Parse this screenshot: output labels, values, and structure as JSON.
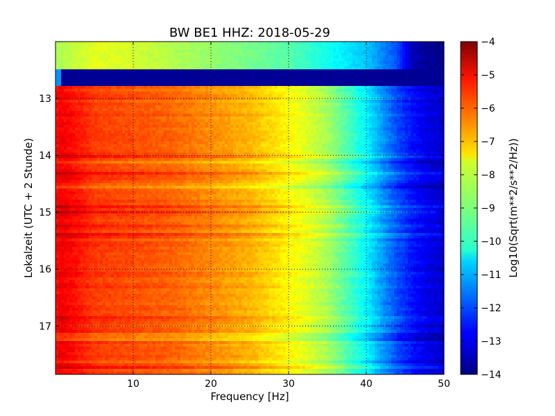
{
  "chart_data": {
    "type": "heatmap",
    "title": "BW BE1 HHZ: 2018-05-29",
    "xlabel": "Frequency [Hz]",
    "ylabel": "Lokalzeit (UTC + 2 Stunde)",
    "colorbar_label": "Log10(Sqrt(m**2/s**2/Hz))",
    "xlim": [
      0,
      50
    ],
    "ylim": [
      12.0,
      17.85
    ],
    "y_inverted": true,
    "x_ticks": [
      10,
      20,
      30,
      40,
      50
    ],
    "y_ticks": [
      13,
      14,
      15,
      16,
      17
    ],
    "colorbar_range": [
      -14,
      -4
    ],
    "colorbar_ticks": [
      -4,
      -5,
      -6,
      -7,
      -8,
      -9,
      -10,
      -11,
      -12,
      -13,
      -14
    ],
    "colormap": "jet",
    "grid": true,
    "gap_interval_hours": [
      12.48,
      12.78
    ],
    "frequency_profile": {
      "x": [
        0,
        0.5,
        2,
        5,
        10,
        15,
        20,
        25,
        28,
        30,
        32,
        35,
        38,
        40,
        42,
        44,
        46,
        48,
        50
      ],
      "values": [
        -5.4,
        -5.1,
        -5.3,
        -5.8,
        -6.0,
        -6.2,
        -6.6,
        -7.0,
        -7.4,
        -7.7,
        -8.0,
        -8.6,
        -9.6,
        -10.3,
        -11.2,
        -12.0,
        -12.6,
        -13.0,
        -13.2
      ]
    },
    "early_segment_profile": {
      "time_range": [
        12.0,
        12.48
      ],
      "x": [
        0,
        5,
        10,
        20,
        30,
        40,
        44,
        46,
        48,
        50
      ],
      "values": [
        -8.6,
        -8.0,
        -8.2,
        -8.8,
        -9.4,
        -10.8,
        -12.0,
        -13.5,
        -13.8,
        -13.9
      ]
    },
    "gap_value": -13.8
  }
}
